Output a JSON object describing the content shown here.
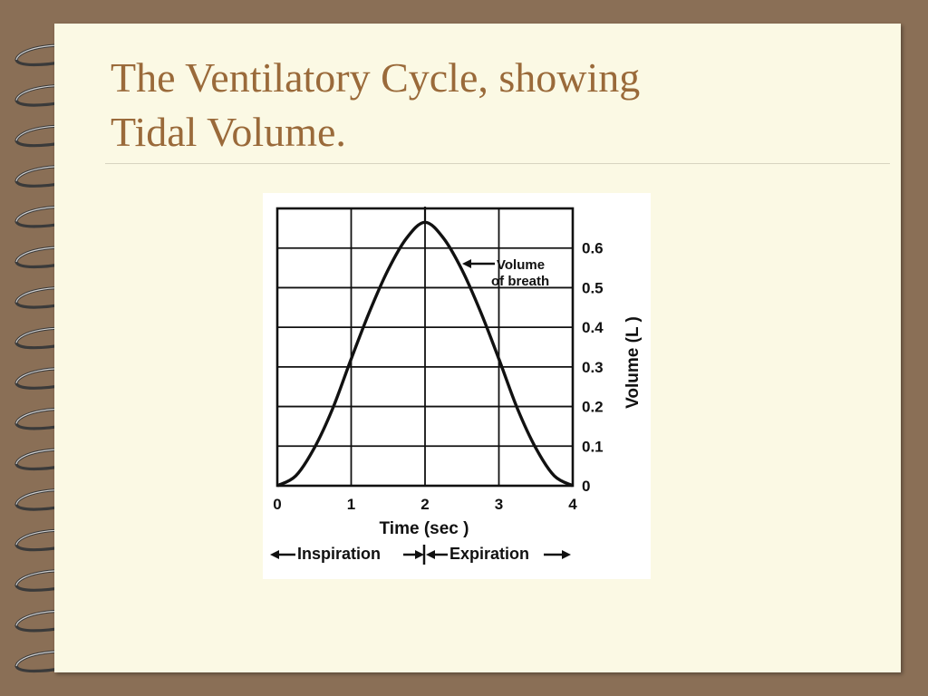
{
  "slide": {
    "title_line1": "The Ventilatory Cycle, showing",
    "title_line2": "Tidal Volume."
  },
  "colors": {
    "background": "#8a6f56",
    "page": "#fbf9e4",
    "title": "#9a6a3a",
    "curve": "#111111"
  },
  "chart_data": {
    "type": "line",
    "xlabel": "Time (sec )",
    "ylabel": "Volume (L )",
    "x_ticks": [
      "0",
      "1",
      "2",
      "3",
      "4"
    ],
    "y_ticks": [
      "0",
      "0.1",
      "0.2",
      "0.3",
      "0.4",
      "0.5",
      "0.6"
    ],
    "xlim": [
      0,
      4
    ],
    "ylim": [
      0,
      0.7
    ],
    "grid": true,
    "series": [
      {
        "name": "Volume of breath",
        "x": [
          0,
          0.25,
          0.5,
          0.75,
          1.0,
          1.25,
          1.5,
          1.75,
          2.0,
          2.25,
          2.5,
          2.75,
          3.0,
          3.25,
          3.5,
          3.75,
          4.0
        ],
        "y": [
          0,
          0.025,
          0.095,
          0.195,
          0.32,
          0.44,
          0.545,
          0.625,
          0.665,
          0.625,
          0.545,
          0.44,
          0.32,
          0.195,
          0.095,
          0.025,
          0
        ]
      }
    ],
    "annotation": {
      "line1": "Volume",
      "line2": "of breath"
    },
    "phases": {
      "inspiration": "Inspiration",
      "expiration": "Expiration"
    }
  }
}
